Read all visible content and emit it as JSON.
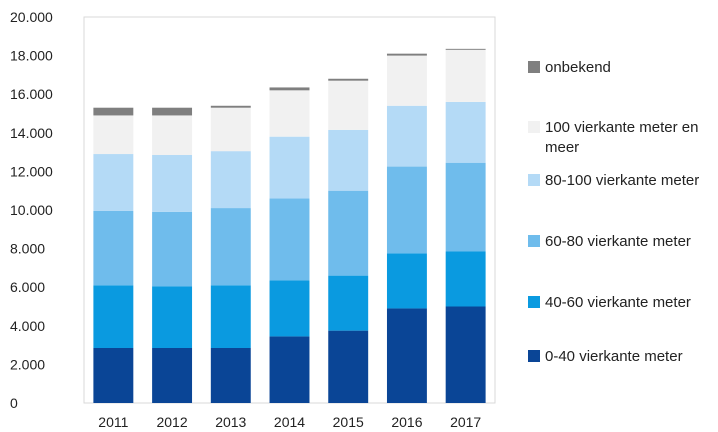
{
  "chart_data": {
    "type": "bar",
    "stacked": true,
    "title": "",
    "xlabel": "",
    "ylabel": "",
    "categories": [
      "2011",
      "2012",
      "2013",
      "2014",
      "2015",
      "2016",
      "2017"
    ],
    "ylim": [
      0,
      20000
    ],
    "y_ticks": [
      0,
      2000,
      4000,
      6000,
      8000,
      10000,
      12000,
      14000,
      16000,
      18000,
      20000
    ],
    "y_tick_labels": [
      "0",
      "2.000",
      "4.000",
      "6.000",
      "8.000",
      "10.000",
      "12.000",
      "14.000",
      "16.000",
      "18.000",
      "20.000"
    ],
    "grid": false,
    "legend_position": "right",
    "series": [
      {
        "name": "0-40 vierkante meter",
        "color": "#0a4596",
        "values": [
          2850,
          2850,
          2850,
          3450,
          3750,
          4900,
          5000
        ]
      },
      {
        "name": "40-60 vierkante meter",
        "color": "#0a9ae0",
        "values": [
          3250,
          3200,
          3250,
          2900,
          2850,
          2850,
          2850
        ]
      },
      {
        "name": "60-80 vierkante meter",
        "color": "#6fbcec",
        "values": [
          3850,
          3850,
          4000,
          4250,
          4400,
          4500,
          4600
        ]
      },
      {
        "name": "80-100 vierkante meter",
        "color": "#b4daf6",
        "values": [
          2950,
          2950,
          2950,
          3200,
          3150,
          3150,
          3150
        ]
      },
      {
        "name": "100 vierkante meter en meer",
        "color": "#f1f1f1",
        "values": [
          2000,
          2050,
          2250,
          2400,
          2550,
          2600,
          2700
        ]
      },
      {
        "name": "onbekend",
        "color": "#7f7f7f",
        "values": [
          400,
          400,
          100,
          150,
          100,
          100,
          50
        ]
      }
    ],
    "legend_labels": [
      "onbekend",
      "100 vierkante meter en",
      "meer",
      "80-100 vierkante meter",
      "60-80 vierkante meter",
      "40-60 vierkante meter",
      "0-40 vierkante meter"
    ]
  }
}
